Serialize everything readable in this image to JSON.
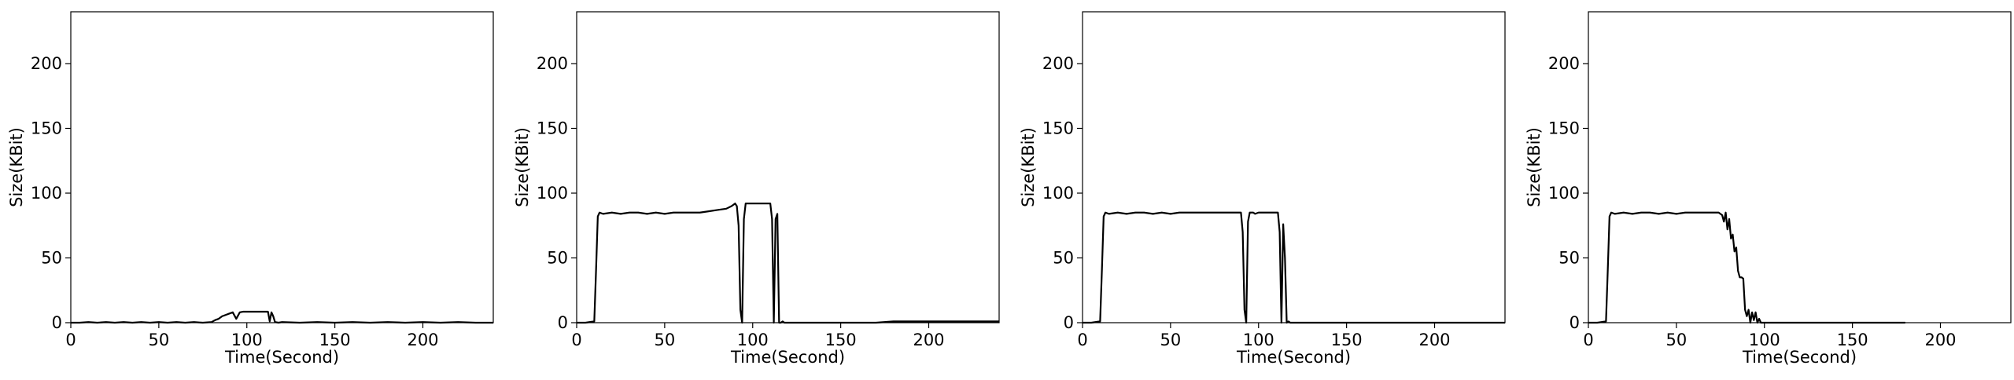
{
  "chart_data": [
    {
      "type": "line",
      "xlabel": "Time(Second)",
      "ylabel": "Size(KBit)",
      "xlim": [
        0,
        240
      ],
      "ylim": [
        0,
        240
      ],
      "xticks": [
        0,
        50,
        100,
        150,
        200
      ],
      "yticks": [
        0,
        50,
        100,
        150,
        200
      ],
      "grid": false,
      "line_color": "#000000",
      "series": [
        {
          "x": [
            0,
            5,
            10,
            15,
            20,
            25,
            30,
            35,
            40,
            45,
            50,
            55,
            60,
            65,
            70,
            75,
            80,
            82,
            84,
            86,
            88,
            90,
            92,
            94,
            96,
            98,
            100,
            102,
            104,
            106,
            108,
            110,
            112,
            113,
            114,
            115,
            116,
            118,
            120,
            130,
            140,
            150,
            160,
            170,
            180,
            190,
            200,
            210,
            220,
            230,
            240
          ],
          "y": [
            0,
            0,
            0.5,
            0,
            0.5,
            0,
            0.5,
            0,
            0.5,
            0,
            0.5,
            0,
            0.5,
            0,
            0.5,
            0,
            0.5,
            2,
            3,
            5,
            6,
            7,
            8,
            3,
            8,
            8.5,
            8.5,
            8.5,
            8.5,
            8.5,
            8.5,
            8.5,
            8.5,
            1,
            8,
            5,
            0.5,
            0,
            0.5,
            0,
            0.5,
            0,
            0.5,
            0,
            0.5,
            0,
            0.5,
            0,
            0.5,
            0,
            0
          ]
        }
      ]
    },
    {
      "type": "line",
      "xlabel": "Time(Second)",
      "ylabel": "Size(KBit)",
      "xlim": [
        0,
        240
      ],
      "ylim": [
        0,
        240
      ],
      "xticks": [
        0,
        50,
        100,
        150,
        200
      ],
      "yticks": [
        0,
        50,
        100,
        150,
        200
      ],
      "grid": false,
      "line_color": "#000000",
      "series": [
        {
          "x": [
            0,
            5,
            10,
            11,
            12,
            13,
            15,
            20,
            25,
            30,
            35,
            40,
            45,
            50,
            55,
            60,
            65,
            70,
            75,
            80,
            85,
            88,
            90,
            91,
            92,
            93,
            94,
            95,
            96,
            97,
            98,
            100,
            105,
            110,
            111,
            112,
            113,
            114,
            115,
            116,
            117,
            118,
            120,
            130,
            140,
            150,
            160,
            170,
            180,
            190,
            200,
            210,
            220,
            230,
            240
          ],
          "y": [
            0,
            0,
            1,
            40,
            82,
            85,
            84,
            85,
            84,
            85,
            85,
            84,
            85,
            84,
            85,
            85,
            85,
            85,
            86,
            87,
            88,
            90,
            92,
            90,
            75,
            10,
            0,
            80,
            92,
            92,
            92,
            92,
            92,
            92,
            80,
            0,
            80,
            84,
            0,
            0,
            1,
            0,
            0,
            0,
            0,
            0,
            0,
            0,
            1,
            1,
            1,
            1,
            1,
            1,
            1
          ]
        }
      ]
    },
    {
      "type": "line",
      "xlabel": "Time(Second)",
      "ylabel": "Size(KBit)",
      "xlim": [
        0,
        240
      ],
      "ylim": [
        0,
        240
      ],
      "xticks": [
        0,
        50,
        100,
        150,
        200
      ],
      "yticks": [
        0,
        50,
        100,
        150,
        200
      ],
      "grid": false,
      "line_color": "#000000",
      "series": [
        {
          "x": [
            0,
            5,
            10,
            11,
            12,
            13,
            15,
            20,
            25,
            30,
            35,
            40,
            45,
            50,
            55,
            60,
            65,
            70,
            75,
            80,
            85,
            90,
            91,
            92,
            93,
            94,
            95,
            96,
            97,
            98,
            100,
            105,
            110,
            111,
            112,
            113,
            114,
            115,
            116,
            117,
            118,
            120,
            130,
            140,
            150,
            160,
            170,
            180,
            190,
            200,
            210,
            220,
            230,
            240
          ],
          "y": [
            0,
            0,
            1,
            40,
            82,
            85,
            84,
            85,
            84,
            85,
            85,
            84,
            85,
            84,
            85,
            85,
            85,
            85,
            85,
            85,
            85,
            85,
            70,
            10,
            0,
            78,
            85,
            85,
            85,
            84,
            85,
            85,
            85,
            85,
            70,
            0,
            76,
            50,
            0,
            1,
            0,
            0,
            0,
            0,
            0,
            0,
            0,
            0,
            0,
            0,
            0,
            0,
            0,
            0
          ]
        }
      ]
    },
    {
      "type": "line",
      "xlabel": "Time(Second)",
      "ylabel": "Size(KBit)",
      "xlim": [
        0,
        240
      ],
      "ylim": [
        0,
        240
      ],
      "xticks": [
        0,
        50,
        100,
        150,
        200
      ],
      "yticks": [
        0,
        50,
        100,
        150,
        200
      ],
      "grid": false,
      "line_color": "#000000",
      "series": [
        {
          "x": [
            0,
            5,
            10,
            11,
            12,
            13,
            15,
            20,
            25,
            30,
            35,
            40,
            45,
            50,
            55,
            60,
            65,
            70,
            74,
            76,
            77,
            78,
            79,
            80,
            81,
            82,
            83,
            84,
            85,
            86,
            87,
            88,
            89,
            90,
            91,
            92,
            93,
            94,
            95,
            96,
            97,
            98,
            100,
            110,
            120,
            130,
            140,
            150,
            160,
            170,
            180
          ],
          "y": [
            0,
            0,
            1,
            40,
            82,
            85,
            84,
            85,
            84,
            85,
            85,
            84,
            85,
            84,
            85,
            85,
            85,
            85,
            85,
            83,
            78,
            85,
            72,
            80,
            65,
            68,
            55,
            58,
            40,
            35,
            35,
            34,
            10,
            5,
            10,
            0,
            8,
            2,
            8,
            0,
            3,
            0,
            0,
            0,
            0,
            0,
            0,
            0,
            0,
            0,
            0
          ]
        }
      ]
    }
  ]
}
